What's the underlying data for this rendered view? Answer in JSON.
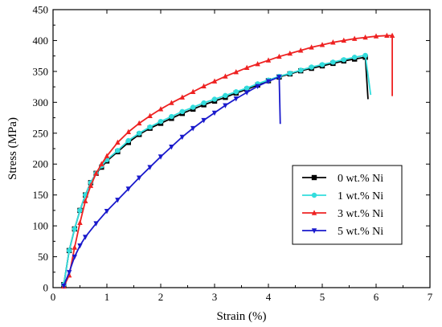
{
  "chart_data": {
    "type": "line",
    "xlabel": "Strain (%)",
    "ylabel": "Stress (MPa)",
    "xlim": [
      0,
      7
    ],
    "ylim": [
      0,
      450
    ],
    "xticks": [
      0,
      1,
      2,
      3,
      4,
      5,
      6,
      7
    ],
    "yticks": [
      0,
      50,
      100,
      150,
      200,
      250,
      300,
      350,
      400,
      450
    ],
    "grid": false,
    "legend_position": "lower-right",
    "series": [
      {
        "name": "0 wt.% Ni",
        "color": "#000000",
        "marker": "square",
        "x": [
          0.2,
          0.3,
          0.4,
          0.5,
          0.6,
          0.7,
          0.8,
          0.9,
          1.0,
          1.2,
          1.4,
          1.6,
          1.8,
          2.0,
          2.2,
          2.4,
          2.6,
          2.8,
          3.0,
          3.2,
          3.4,
          3.6,
          3.8,
          4.0,
          4.2,
          4.4,
          4.6,
          4.8,
          5.0,
          5.2,
          5.4,
          5.6,
          5.8,
          5.85
        ],
        "y": [
          5,
          60,
          95,
          125,
          150,
          170,
          185,
          195,
          205,
          220,
          235,
          248,
          258,
          266,
          274,
          282,
          289,
          296,
          302,
          308,
          315,
          321,
          328,
          335,
          341,
          346,
          351,
          355,
          359,
          363,
          367,
          370,
          373,
          305
        ]
      },
      {
        "name": "1 wt.% Ni",
        "color": "#33dddd",
        "marker": "circle",
        "x": [
          0.2,
          0.3,
          0.4,
          0.5,
          0.6,
          0.7,
          0.8,
          0.9,
          1.0,
          1.2,
          1.4,
          1.6,
          1.8,
          2.0,
          2.2,
          2.4,
          2.6,
          2.8,
          3.0,
          3.2,
          3.4,
          3.6,
          3.8,
          4.0,
          4.2,
          4.4,
          4.6,
          4.8,
          5.0,
          5.2,
          5.4,
          5.6,
          5.8,
          5.9
        ],
        "y": [
          5,
          60,
          95,
          125,
          150,
          170,
          185,
          197,
          207,
          222,
          238,
          250,
          260,
          269,
          277,
          285,
          292,
          299,
          305,
          311,
          317,
          323,
          330,
          336,
          342,
          347,
          352,
          357,
          361,
          365,
          369,
          373,
          376,
          312
        ]
      },
      {
        "name": "3 wt.% Ni",
        "color": "#ee2222",
        "marker": "triangle-up",
        "x": [
          0.2,
          0.3,
          0.4,
          0.5,
          0.6,
          0.7,
          0.8,
          0.9,
          1.0,
          1.2,
          1.4,
          1.6,
          1.8,
          2.0,
          2.2,
          2.4,
          2.6,
          2.8,
          3.0,
          3.2,
          3.4,
          3.6,
          3.8,
          4.0,
          4.2,
          4.4,
          4.6,
          4.8,
          5.0,
          5.2,
          5.4,
          5.6,
          5.8,
          6.0,
          6.2,
          6.3,
          6.3
        ],
        "y": [
          2,
          20,
          65,
          105,
          140,
          165,
          185,
          200,
          213,
          235,
          252,
          266,
          278,
          289,
          299,
          308,
          317,
          326,
          334,
          342,
          349,
          356,
          362,
          368,
          374,
          379,
          384,
          389,
          393,
          397,
          400,
          403,
          405,
          407,
          408,
          408,
          310
        ]
      },
      {
        "name": "5 wt.% Ni",
        "color": "#1a1acc",
        "marker": "triangle-down",
        "x": [
          0.2,
          0.3,
          0.4,
          0.5,
          0.6,
          0.8,
          1.0,
          1.2,
          1.4,
          1.6,
          1.8,
          2.0,
          2.2,
          2.4,
          2.6,
          2.8,
          3.0,
          3.2,
          3.4,
          3.6,
          3.8,
          4.0,
          4.2,
          4.22
        ],
        "y": [
          3,
          25,
          50,
          68,
          82,
          104,
          124,
          142,
          160,
          178,
          195,
          212,
          228,
          244,
          258,
          271,
          283,
          295,
          306,
          316,
          326,
          334,
          341,
          265
        ]
      }
    ]
  }
}
